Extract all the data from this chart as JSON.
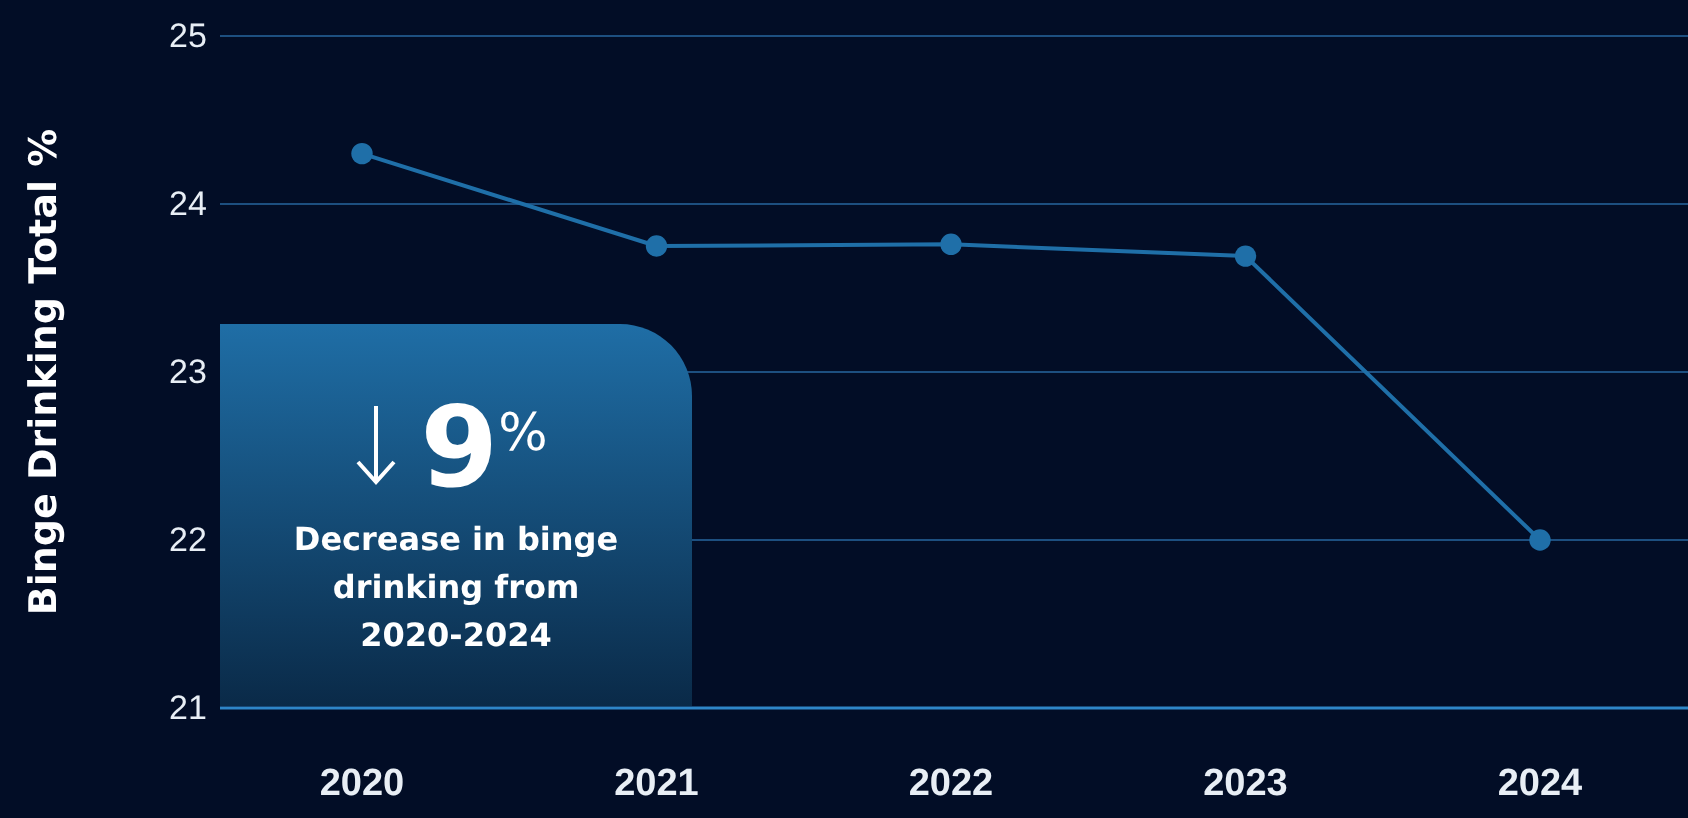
{
  "chart_data": {
    "type": "line",
    "ylabel": "Binge Drinking Total %",
    "categories": [
      "2020",
      "2021",
      "2022",
      "2023",
      "2024"
    ],
    "series": [
      {
        "color": "#1f6fa8",
        "values": [
          24.3,
          23.75,
          23.76,
          23.69,
          22.0
        ]
      }
    ],
    "ylim": [
      21,
      25
    ],
    "yticks": [
      21,
      22,
      23,
      24,
      25
    ],
    "grid": "y",
    "marker": "circle",
    "line_style": "solid",
    "annotations": [
      "9$^{%}$",
      "Decrease in binge drinking from 2020-2024"
    ]
  }
}
